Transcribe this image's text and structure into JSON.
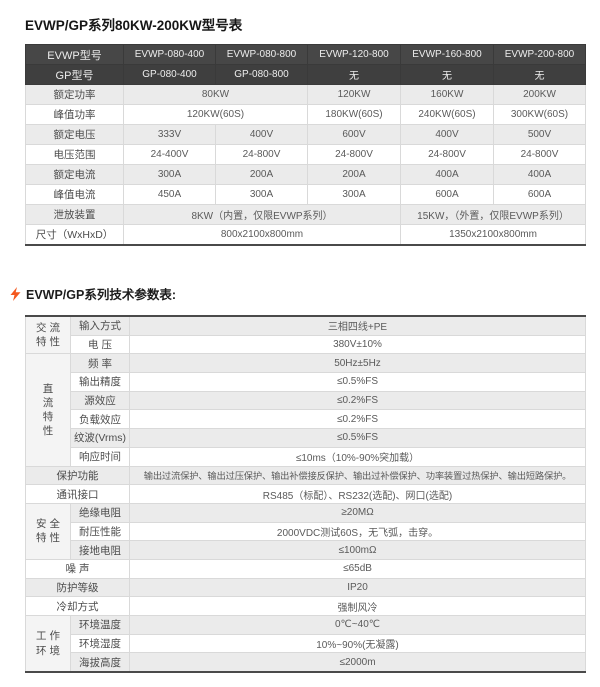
{
  "titles": {
    "model_table": "EVWP/GP系列80KW-200KW型号表",
    "spec_table": "EVWP/GP系列技术参数表:"
  },
  "colors": {
    "header_bg": "#474747",
    "header_bg_dark": "#3f3f3f",
    "stripe": "#ebebeb",
    "grid_border": "#d9d9d9",
    "dark_rule": "#4a4a4a",
    "accent_bolt": "#f4581e",
    "body_text": "#5a5a5a"
  },
  "icons": {
    "spec_title_icon": "lightning-icon"
  },
  "model_table": {
    "header_rows": [
      {
        "label": "EVWP型号",
        "cells": [
          {
            "t": "EVWP-080-400"
          },
          {
            "t": "EVWP-080-800"
          },
          {
            "t": "EVWP-120-800"
          },
          {
            "t": "EVWP-160-800"
          },
          {
            "t": "EVWP-200-800"
          }
        ]
      },
      {
        "label": "GP型号",
        "cells": [
          {
            "t": "GP-080-400"
          },
          {
            "t": "GP-080-800"
          },
          {
            "t": "无"
          },
          {
            "t": "无"
          },
          {
            "t": "无"
          }
        ]
      }
    ],
    "rows": [
      {
        "label": "额定功率",
        "cells": [
          {
            "t": "80KW",
            "span": 2
          },
          {
            "t": "120KW"
          },
          {
            "t": "160KW"
          },
          {
            "t": "200KW"
          }
        ]
      },
      {
        "label": "峰值功率",
        "cells": [
          {
            "t": "120KW(60S)",
            "span": 2
          },
          {
            "t": "180KW(60S)"
          },
          {
            "t": "240KW(60S)"
          },
          {
            "t": "300KW(60S)"
          }
        ]
      },
      {
        "label": "额定电压",
        "cells": [
          {
            "t": "333V"
          },
          {
            "t": "400V"
          },
          {
            "t": "600V"
          },
          {
            "t": "400V"
          },
          {
            "t": "500V"
          }
        ]
      },
      {
        "label": "电压范围",
        "cells": [
          {
            "t": "24-400V"
          },
          {
            "t": "24-800V"
          },
          {
            "t": "24-800V"
          },
          {
            "t": "24-800V"
          },
          {
            "t": "24-800V"
          }
        ]
      },
      {
        "label": "额定电流",
        "cells": [
          {
            "t": "300A"
          },
          {
            "t": "200A"
          },
          {
            "t": "200A"
          },
          {
            "t": "400A"
          },
          {
            "t": "400A"
          }
        ]
      },
      {
        "label": "峰值电流",
        "cells": [
          {
            "t": "450A"
          },
          {
            "t": "300A"
          },
          {
            "t": "300A"
          },
          {
            "t": "600A"
          },
          {
            "t": "600A"
          }
        ]
      },
      {
        "label": "泄放装置",
        "cells": [
          {
            "t": "8KW（内置，仅限EVWP系列）",
            "span": 3
          },
          {
            "t": "15KW，（外置，仅限EVWP系列）",
            "span": 2
          }
        ]
      },
      {
        "label": "尺寸（WxHxD）",
        "cells": [
          {
            "t": "800x2100x800mm",
            "span": 3
          },
          {
            "t": "1350x2100x800mm",
            "span": 2
          }
        ]
      }
    ]
  },
  "spec_table": {
    "rows": [
      {
        "group_lines": [
          "交 流",
          "特 性"
        ],
        "group_span": 2,
        "label": "输入方式",
        "value": "三相四线+PE"
      },
      {
        "label": "电 压",
        "value": "380V±10%"
      },
      {
        "group_lines": [
          "直",
          "流",
          "特",
          "性"
        ],
        "group_span": 6,
        "label": "频 率",
        "value": "50Hz±5Hz"
      },
      {
        "label": "输出精度",
        "value": "≤0.5%FS"
      },
      {
        "label": "源效应",
        "value": "≤0.2%FS"
      },
      {
        "label": "负载效应",
        "value": "≤0.2%FS"
      },
      {
        "label": "纹波(Vrms)",
        "value": "≤0.5%FS"
      },
      {
        "label": "响应时间",
        "value": "≤10ms（10%-90%突加载）"
      },
      {
        "label": "保护功能",
        "label_full": true,
        "value": "输出过流保护、输出过压保护、输出补偿接反保护、输出过补偿保护、功率装置过热保护、输出短路保护。"
      },
      {
        "label": "通讯接口",
        "label_full": true,
        "value": "RS485（标配）、RS232(选配)、网口(选配)"
      },
      {
        "group_lines": [
          "安 全",
          "特 性"
        ],
        "group_span": 3,
        "label": "绝缘电阻",
        "value": "≥20MΩ"
      },
      {
        "label": "耐压性能",
        "value": "2000VDC测试60S，无飞弧，击穿。"
      },
      {
        "label": "接地电阻",
        "value": "≤100mΩ"
      },
      {
        "label": "噪 声",
        "label_full": true,
        "value": "≤65dB"
      },
      {
        "label": "防护等级",
        "label_full": true,
        "value": "IP20"
      },
      {
        "label": "冷却方式",
        "label_full": true,
        "value": "强制风冷"
      },
      {
        "group_lines": [
          "工 作",
          "环 境"
        ],
        "group_span": 3,
        "label": "环境温度",
        "value": "0℃~40℃"
      },
      {
        "label": "环境湿度",
        "value": "10%~90%(无凝露)"
      },
      {
        "label": "海拔高度",
        "value": "≤2000m"
      }
    ]
  }
}
